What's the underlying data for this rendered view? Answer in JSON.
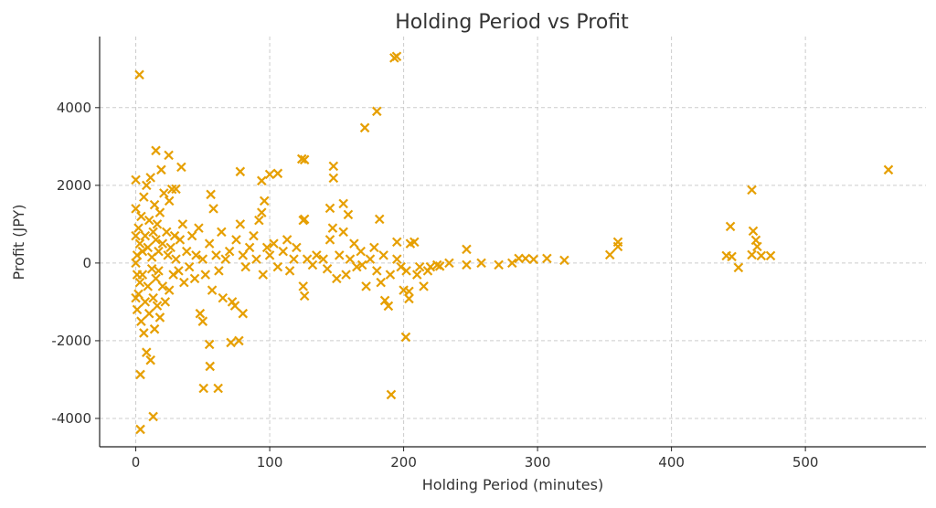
{
  "chart_data": {
    "type": "scatter",
    "title": "Holding Period vs Profit",
    "xlabel": "Holding Period (minutes)",
    "ylabel": "Profit (JPY)",
    "xlim": [
      -27,
      590
    ],
    "ylim": [
      -4730,
      5830
    ],
    "xticks": [
      0,
      100,
      200,
      300,
      400,
      500
    ],
    "yticks": [
      -4000,
      -2000,
      0,
      2000,
      4000
    ],
    "grid": true,
    "marker": "x",
    "color": "#E69F00",
    "points": [
      [
        2.7,
        4847
      ],
      [
        194.8,
        5318
      ],
      [
        193,
        5280
      ],
      [
        180,
        3906
      ],
      [
        171,
        3482
      ],
      [
        562,
        2400
      ],
      [
        460,
        1882
      ],
      [
        444,
        941
      ],
      [
        3.4,
        -4282
      ],
      [
        13,
        -3953
      ],
      [
        190.7,
        -3388
      ],
      [
        50.6,
        -3224
      ],
      [
        61.5,
        -3224
      ],
      [
        55.4,
        -2659
      ],
      [
        3.4,
        -2870
      ],
      [
        201.6,
        -1906
      ],
      [
        55,
        -2094
      ],
      [
        71,
        -2047
      ],
      [
        77,
        -2000
      ],
      [
        106,
        2306
      ],
      [
        100,
        2282
      ],
      [
        94,
        2118
      ],
      [
        126,
        2659
      ],
      [
        124,
        2680
      ],
      [
        147.6,
        2494
      ],
      [
        147.6,
        2188
      ],
      [
        78,
        2353
      ],
      [
        15,
        2894
      ],
      [
        24.6,
        2776
      ],
      [
        34,
        2470
      ],
      [
        0,
        2141
      ],
      [
        30,
        1906
      ],
      [
        56,
        1765
      ],
      [
        182,
        1129
      ],
      [
        155,
        1529
      ],
      [
        158.6,
        1247
      ],
      [
        145,
        1412
      ],
      [
        126,
        1129
      ],
      [
        126,
        -847
      ],
      [
        186,
        -965
      ],
      [
        188.6,
        -1106
      ],
      [
        204,
        -729
      ],
      [
        204,
        -918
      ],
      [
        169,
        -50
      ],
      [
        227,
        -80
      ],
      [
        208,
        541
      ],
      [
        195,
        541
      ],
      [
        234,
        0
      ],
      [
        247,
        353
      ],
      [
        247,
        -47
      ],
      [
        258,
        0
      ],
      [
        271,
        -47
      ],
      [
        281,
        0
      ],
      [
        286,
        118
      ],
      [
        291,
        118
      ],
      [
        297,
        94
      ],
      [
        307,
        118
      ],
      [
        320,
        71
      ],
      [
        354,
        212
      ],
      [
        360,
        541
      ],
      [
        360,
        424
      ],
      [
        441,
        188
      ],
      [
        445,
        165
      ],
      [
        450,
        -118
      ],
      [
        461,
        824
      ],
      [
        463,
        588
      ],
      [
        464,
        424
      ],
      [
        467,
        188
      ],
      [
        474,
        188
      ],
      [
        460,
        212
      ],
      [
        0,
        1400
      ],
      [
        1,
        -1200
      ],
      [
        2,
        900
      ],
      [
        2,
        -800
      ],
      [
        3,
        500
      ],
      [
        3,
        -500
      ],
      [
        4,
        1200
      ],
      [
        4,
        -1500
      ],
      [
        5,
        300
      ],
      [
        5,
        -300
      ],
      [
        6,
        1700
      ],
      [
        6,
        -1800
      ],
      [
        7,
        700
      ],
      [
        7,
        -1000
      ],
      [
        8,
        2000
      ],
      [
        8,
        -2300
      ],
      [
        9,
        400
      ],
      [
        9,
        -600
      ],
      [
        10,
        1100
      ],
      [
        10,
        -1300
      ],
      [
        11,
        2200
      ],
      [
        11,
        -2500
      ],
      [
        12,
        150
      ],
      [
        12,
        -150
      ],
      [
        13,
        800
      ],
      [
        13,
        -900
      ],
      [
        14,
        1500
      ],
      [
        14,
        -1700
      ],
      [
        15,
        600
      ],
      [
        15,
        -400
      ],
      [
        16,
        1000
      ],
      [
        16,
        -1100
      ],
      [
        17,
        300
      ],
      [
        17,
        -200
      ],
      [
        18,
        1300
      ],
      [
        18,
        -1400
      ],
      [
        19,
        2400
      ],
      [
        20,
        500
      ],
      [
        20,
        -600
      ],
      [
        21,
        1800
      ],
      [
        22,
        -1000
      ],
      [
        23,
        800
      ],
      [
        24,
        200
      ],
      [
        25,
        1600
      ],
      [
        25,
        -700
      ],
      [
        26,
        400
      ],
      [
        27,
        1900
      ],
      [
        28,
        -300
      ],
      [
        29,
        700
      ],
      [
        30,
        100
      ],
      [
        32,
        -200
      ],
      [
        33,
        600
      ],
      [
        35,
        1000
      ],
      [
        36,
        -500
      ],
      [
        38,
        300
      ],
      [
        40,
        -100
      ],
      [
        42,
        700
      ],
      [
        44,
        -400
      ],
      [
        45,
        200
      ],
      [
        47,
        900
      ],
      [
        48,
        -1300
      ],
      [
        50,
        -1500
      ],
      [
        50,
        100
      ],
      [
        52,
        -300
      ],
      [
        55,
        500
      ],
      [
        57,
        -700
      ],
      [
        58,
        1400
      ],
      [
        60,
        200
      ],
      [
        62,
        -200
      ],
      [
        64,
        800
      ],
      [
        65,
        -900
      ],
      [
        67,
        100
      ],
      [
        70,
        300
      ],
      [
        72,
        -1000
      ],
      [
        74,
        -1100
      ],
      [
        75,
        600
      ],
      [
        78,
        1000
      ],
      [
        80,
        -1300
      ],
      [
        80,
        200
      ],
      [
        82,
        -100
      ],
      [
        85,
        400
      ],
      [
        88,
        700
      ],
      [
        90,
        100
      ],
      [
        92,
        1100
      ],
      [
        94,
        1300
      ],
      [
        95,
        -300
      ],
      [
        96,
        1600
      ],
      [
        98,
        400
      ],
      [
        100,
        200
      ],
      [
        103,
        500
      ],
      [
        106,
        -100
      ],
      [
        110,
        300
      ],
      [
        113,
        600
      ],
      [
        115,
        -200
      ],
      [
        118,
        100
      ],
      [
        120,
        400
      ],
      [
        125,
        1100
      ],
      [
        125,
        -600
      ],
      [
        128,
        100
      ],
      [
        132,
        -50
      ],
      [
        135,
        200
      ],
      [
        140,
        100
      ],
      [
        143,
        -150
      ],
      [
        145,
        600
      ],
      [
        147,
        900
      ],
      [
        150,
        -400
      ],
      [
        152,
        200
      ],
      [
        155,
        800
      ],
      [
        157,
        -300
      ],
      [
        160,
        100
      ],
      [
        163,
        500
      ],
      [
        165,
        -100
      ],
      [
        168,
        300
      ],
      [
        172,
        -600
      ],
      [
        175,
        100
      ],
      [
        178,
        400
      ],
      [
        180,
        -200
      ],
      [
        183,
        -500
      ],
      [
        185,
        200
      ],
      [
        190,
        -300
      ],
      [
        195,
        100
      ],
      [
        198,
        -100
      ],
      [
        200,
        -700
      ],
      [
        202,
        -200
      ],
      [
        205,
        500
      ],
      [
        210,
        -300
      ],
      [
        212,
        -100
      ],
      [
        215,
        -600
      ],
      [
        218,
        -200
      ],
      [
        220,
        -100
      ],
      [
        225,
        -50
      ],
      [
        0,
        -900
      ],
      [
        0,
        700
      ],
      [
        1,
        200
      ],
      [
        1,
        -300
      ],
      [
        0,
        0
      ]
    ]
  }
}
